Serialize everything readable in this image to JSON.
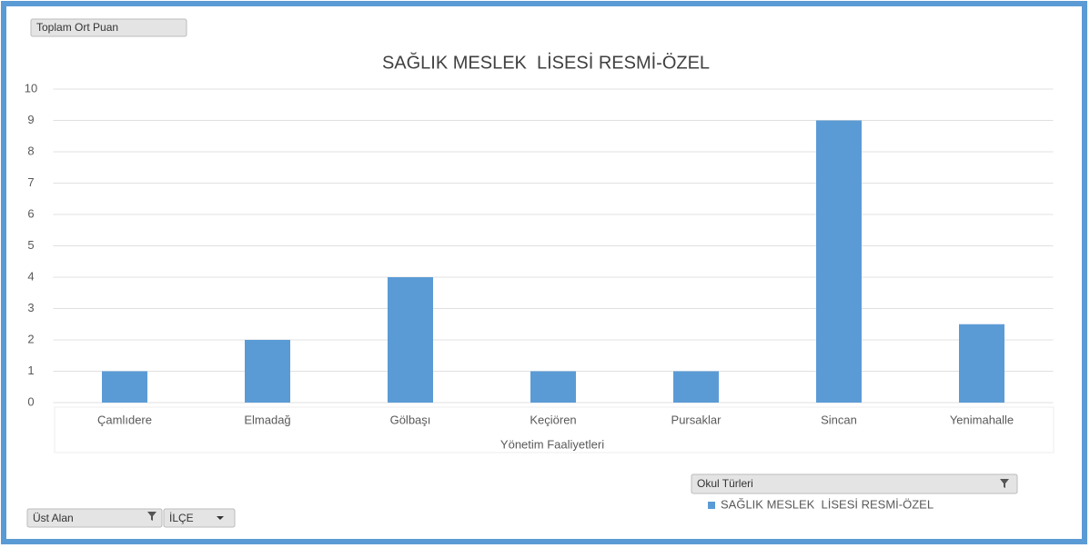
{
  "chart_data": {
    "type": "bar",
    "title": "SAĞLIK MESLEK  LİSESİ RESMİ-ÖZEL",
    "x_label": "Yönetim Faaliyetleri",
    "categories": [
      "Çamlıdere",
      "Elmadağ",
      "Gölbaşı",
      "Keçiören",
      "Pursaklar",
      "Sincan",
      "Yenimahalle"
    ],
    "series": [
      {
        "name": "SAĞLIK MESLEK  LİSESİ RESMİ-ÖZEL",
        "color": "#5b9bd5",
        "values": [
          1,
          2,
          4,
          1,
          1,
          9,
          2.5
        ]
      }
    ],
    "ylim": [
      0,
      10
    ],
    "yticks": [
      0,
      1,
      2,
      3,
      4,
      5,
      6,
      7,
      8,
      9,
      10
    ],
    "grid": true
  },
  "pivot_buttons": {
    "value": "Toplam Ort Puan",
    "legend": "Okul Türleri",
    "axis": [
      "Üst Alan",
      "İLÇE"
    ]
  }
}
